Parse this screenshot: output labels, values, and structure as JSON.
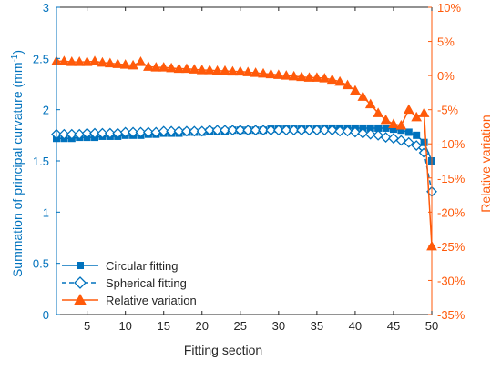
{
  "chart_data": {
    "type": "line",
    "xlabel": "Fitting section",
    "ylabel_left": "Summation of principal curvature (mm",
    "ylabel_left_sup": "-1",
    "ylabel_left_close": ")",
    "ylabel_right": "Relative variation",
    "xlim": [
      1,
      50
    ],
    "ylim_left": [
      0,
      3
    ],
    "ylim_right": [
      -35,
      10
    ],
    "x_ticks": [
      5,
      10,
      15,
      20,
      25,
      30,
      35,
      40,
      45,
      50
    ],
    "y_left_ticks": [
      "0",
      "0.5",
      "1",
      "1.5",
      "2",
      "2.5",
      "3"
    ],
    "y_left_tick_values": [
      0,
      0.5,
      1,
      1.5,
      2,
      2.5,
      3
    ],
    "y_right_ticks": [
      "-35%",
      "-30%",
      "-25%",
      "-20%",
      "-15%",
      "-10%",
      "-5%",
      "0%",
      "5%",
      "10%"
    ],
    "y_right_tick_values": [
      -35,
      -30,
      -25,
      -20,
      -15,
      -10,
      -5,
      0,
      5,
      10
    ],
    "grid": false,
    "legend_position": "bottom-left",
    "colors": {
      "blue": "#0072BD",
      "orange": "#FF5A0A",
      "axis": "#262626"
    },
    "x": [
      1,
      2,
      3,
      4,
      5,
      6,
      7,
      8,
      9,
      10,
      11,
      12,
      13,
      14,
      15,
      16,
      17,
      18,
      19,
      20,
      21,
      22,
      23,
      24,
      25,
      26,
      27,
      28,
      29,
      30,
      31,
      32,
      33,
      34,
      35,
      36,
      37,
      38,
      39,
      40,
      41,
      42,
      43,
      44,
      45,
      46,
      47,
      48,
      49,
      50
    ],
    "series": [
      {
        "name": "Circular fitting",
        "axis": "left",
        "marker": "square",
        "line": "solid",
        "values": [
          1.72,
          1.72,
          1.72,
          1.73,
          1.73,
          1.73,
          1.74,
          1.74,
          1.74,
          1.75,
          1.75,
          1.75,
          1.76,
          1.76,
          1.77,
          1.77,
          1.77,
          1.78,
          1.78,
          1.78,
          1.79,
          1.79,
          1.79,
          1.8,
          1.8,
          1.8,
          1.8,
          1.8,
          1.81,
          1.81,
          1.81,
          1.81,
          1.81,
          1.81,
          1.81,
          1.82,
          1.82,
          1.82,
          1.82,
          1.82,
          1.82,
          1.82,
          1.82,
          1.82,
          1.81,
          1.8,
          1.78,
          1.75,
          1.68,
          1.5
        ]
      },
      {
        "name": "Spherical fitting",
        "axis": "left",
        "marker": "diamond",
        "line": "dashed",
        "values": [
          1.76,
          1.76,
          1.76,
          1.76,
          1.77,
          1.77,
          1.77,
          1.77,
          1.77,
          1.78,
          1.78,
          1.78,
          1.78,
          1.78,
          1.79,
          1.79,
          1.79,
          1.79,
          1.79,
          1.79,
          1.8,
          1.8,
          1.8,
          1.8,
          1.8,
          1.8,
          1.8,
          1.8,
          1.8,
          1.8,
          1.8,
          1.8,
          1.8,
          1.8,
          1.8,
          1.8,
          1.8,
          1.79,
          1.79,
          1.78,
          1.77,
          1.76,
          1.75,
          1.73,
          1.72,
          1.7,
          1.68,
          1.65,
          1.58,
          1.2
        ]
      },
      {
        "name": "Relative variation",
        "axis": "right",
        "marker": "triangle",
        "line": "solid",
        "values": [
          2.1,
          2.1,
          2.0,
          2.0,
          2.0,
          2.1,
          1.9,
          1.8,
          1.7,
          1.6,
          1.5,
          2.0,
          1.3,
          1.2,
          1.2,
          1.1,
          1.0,
          1.0,
          0.9,
          0.8,
          0.8,
          0.7,
          0.7,
          0.6,
          0.6,
          0.5,
          0.4,
          0.3,
          0.2,
          0.1,
          0.0,
          -0.1,
          -0.2,
          -0.3,
          -0.3,
          -0.4,
          -0.6,
          -0.9,
          -1.4,
          -2.2,
          -3.1,
          -4.2,
          -5.5,
          -6.5,
          -7.1,
          -7.3,
          -5.0,
          -6.1,
          -5.5,
          -25.0
        ]
      }
    ]
  }
}
